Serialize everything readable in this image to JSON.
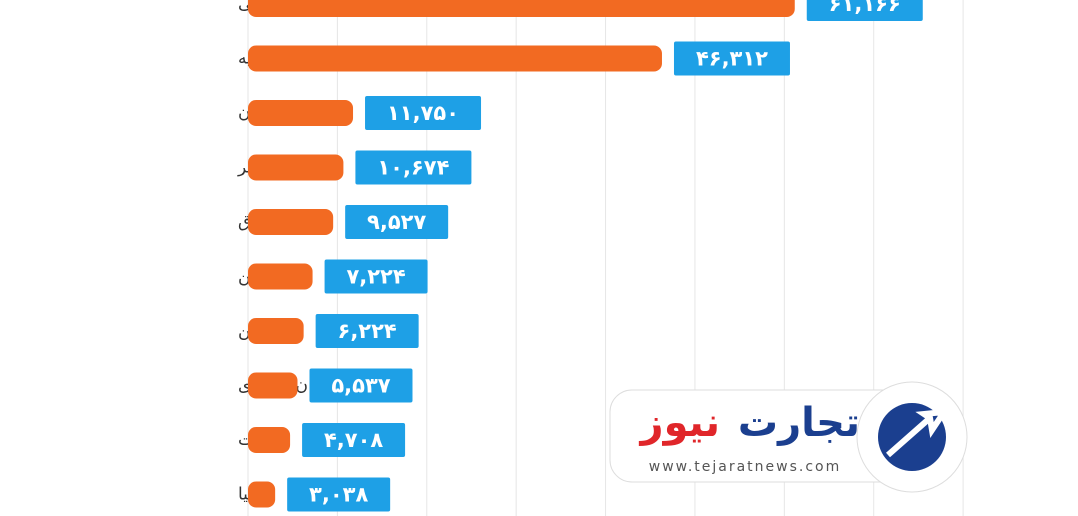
{
  "chart_data": {
    "type": "bar",
    "orientation": "horizontal",
    "categories": [
      "امارات متحده عربی",
      "ترکیه",
      "آلمان",
      "قطر",
      "عراق",
      "چین",
      "بحرین",
      "عربستان سعودی",
      "کویت",
      "ایتالیا"
    ],
    "values": [
      61166,
      46312,
      11750,
      10674,
      9527,
      7224,
      6224,
      5537,
      4708,
      3038
    ],
    "value_labels": [
      "۶۱,۱۶۶",
      "۴۶,۳۱۲",
      "۱۱,۷۵۰",
      "۱۰,۶۷۴",
      "۹,۵۲۷",
      "۷,۲۲۴",
      "۶,۲۲۴",
      "۵,۵۳۷",
      "۴,۷۰۸",
      "۳,۰۳۸"
    ],
    "color": "#f26a22",
    "label_color": "#1ea0e6",
    "xlim": [
      0,
      90000
    ],
    "xticks": [
      0,
      10000,
      20000,
      30000,
      40000,
      50000,
      60000,
      70000,
      80000
    ],
    "grid": true
  },
  "logo": {
    "name_part1": "تجارت",
    "name_part2": "نیوز",
    "url": "www.tejaratnews.com"
  }
}
